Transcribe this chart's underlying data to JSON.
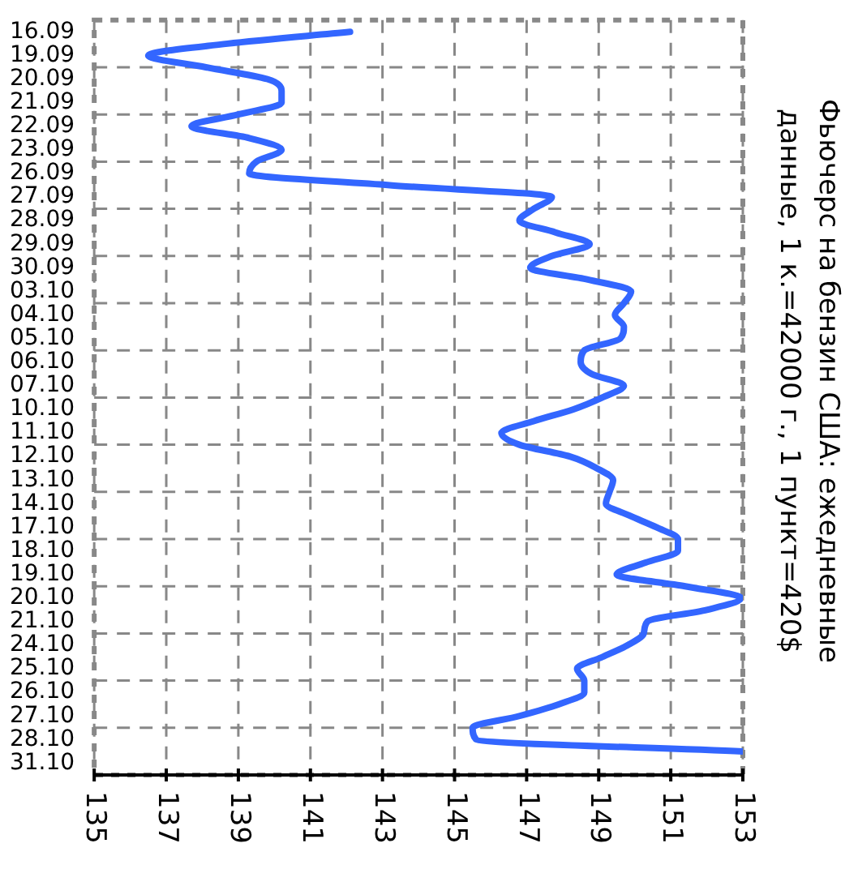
{
  "chart_data": {
    "type": "line",
    "orientation": "horizontal",
    "title": [
      "Фьючерс на бензин США: ежедневные",
      "данные, 1 к.=42000 г., 1 пункт=420$"
    ],
    "categories": [
      null,
      "16.09",
      null,
      "19.09",
      null,
      "20.09",
      null,
      "21.09",
      null,
      "22.09",
      null,
      "23.09",
      null,
      "26.09",
      null,
      "27.09",
      null,
      "28.09",
      null,
      "29.09",
      null,
      "30.09",
      null,
      "03.10",
      null,
      "04.10",
      null,
      "05.10",
      null,
      "06.10",
      null,
      "07.10",
      null,
      "10.10",
      null,
      "11.10",
      null,
      "12.10",
      null,
      "13.10",
      null,
      "14.10",
      null,
      "17.10",
      null,
      "18.10",
      null,
      "19.10",
      null,
      "20.10",
      null,
      "21.10",
      null,
      "24.10",
      null,
      "25.10",
      null,
      "26.10",
      null,
      "27.10",
      null,
      "28.10",
      null,
      "31.10",
      null
    ],
    "series": [
      {
        "color": "#3366ff",
        "values": [
          null,
          142.1,
          138.7,
          136.5,
          138.1,
          139.8,
          140.2,
          140.2,
          139.0,
          137.7,
          139.3,
          140.2,
          139.5,
          139.3,
          143.2,
          147.7,
          147.2,
          146.8,
          147.8,
          148.75,
          147.7,
          147.1,
          148.7,
          149.9,
          149.7,
          149.45,
          149.7,
          149.6,
          148.6,
          148.5,
          148.8,
          149.7,
          149.1,
          148.3,
          147.2,
          146.3,
          146.8,
          148.2,
          148.95,
          149.4,
          149.3,
          149.2,
          149.85,
          150.6,
          151.2,
          151.2,
          150.3,
          149.5,
          151.4,
          152.95,
          152.0,
          150.35,
          150.25,
          149.8,
          149.1,
          148.4,
          148.6,
          148.6,
          147.9,
          146.8,
          145.5,
          145.6,
          153.0,
          null,
          null
        ]
      }
    ],
    "xlim": [
      135,
      153
    ],
    "xticks": [
      135,
      137,
      139,
      141,
      143,
      145,
      147,
      149,
      151,
      153
    ],
    "grid": true,
    "legend": false,
    "marker": "none",
    "line_style": "solid"
  }
}
